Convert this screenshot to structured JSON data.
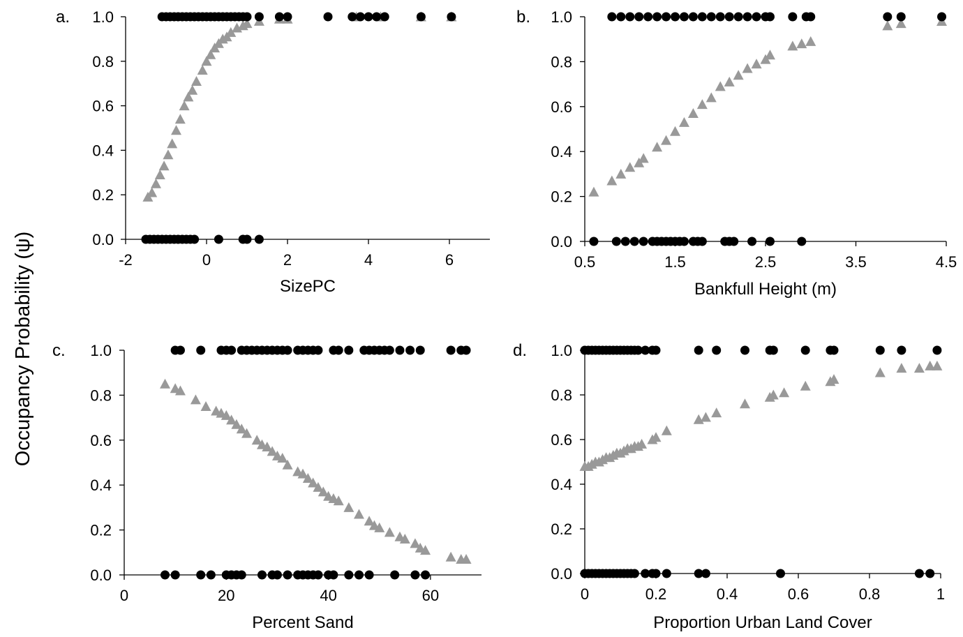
{
  "ylabel": "Occupancy Probability (ψ)",
  "colors": {
    "observed": "#000000",
    "predicted": "#999999"
  },
  "chart_data": [
    {
      "type": "scatter",
      "panel_label": "a.",
      "xlabel": "SizePC",
      "xlim": [
        -2,
        7
      ],
      "ylim": [
        0,
        1
      ],
      "xticks": [
        -2,
        0,
        2,
        4,
        6
      ],
      "xtick_labels": [
        "-2",
        "0",
        "2",
        "4",
        "6"
      ],
      "yticks": [
        0,
        0.2,
        0.4,
        0.6,
        0.8,
        1.0
      ],
      "ytick_labels": [
        "0.0",
        "0.2",
        "0.4",
        "0.6",
        "0.8",
        "1.0"
      ],
      "grid": false,
      "series": [
        {
          "marker": "circle",
          "color": "#000000",
          "x": [
            -1.5,
            -1.4,
            -1.3,
            -1.2,
            -1.1,
            -1.0,
            -0.9,
            -0.8,
            -0.7,
            -0.6,
            -0.5,
            -0.4,
            -0.3,
            0.3,
            0.9,
            1.0,
            1.3,
            -1.1,
            -1.0,
            -0.9,
            -0.8,
            -0.7,
            -0.6,
            -0.5,
            -0.4,
            -0.3,
            -0.2,
            -0.1,
            0.0,
            0.1,
            0.2,
            0.3,
            0.4,
            0.5,
            0.6,
            0.7,
            0.8,
            0.9,
            1.0,
            1.3,
            1.8,
            2.0,
            3.0,
            3.6,
            3.8,
            4.0,
            4.2,
            4.4,
            5.3,
            6.05
          ],
          "y": [
            0,
            0,
            0,
            0,
            0,
            0,
            0,
            0,
            0,
            0,
            0,
            0,
            0,
            0,
            0,
            0,
            0,
            1,
            1,
            1,
            1,
            1,
            1,
            1,
            1,
            1,
            1,
            1,
            1,
            1,
            1,
            1,
            1,
            1,
            1,
            1,
            1,
            1,
            1,
            1,
            1,
            1,
            1,
            1,
            1,
            1,
            1,
            1,
            1,
            1
          ]
        },
        {
          "marker": "triangle",
          "color": "#999999",
          "x": [
            -1.45,
            -1.35,
            -1.25,
            -1.15,
            -1.05,
            -0.95,
            -0.85,
            -0.75,
            -0.65,
            -0.55,
            -0.45,
            -0.35,
            -0.25,
            -0.1,
            0.0,
            0.1,
            0.2,
            0.3,
            0.4,
            0.5,
            0.6,
            0.75,
            0.9,
            1.0,
            1.3,
            1.8,
            2.0,
            3.7,
            4.3,
            5.3,
            6.05
          ],
          "y": [
            0.19,
            0.21,
            0.25,
            0.29,
            0.33,
            0.38,
            0.43,
            0.49,
            0.54,
            0.6,
            0.64,
            0.67,
            0.71,
            0.76,
            0.8,
            0.83,
            0.86,
            0.88,
            0.9,
            0.91,
            0.93,
            0.95,
            0.96,
            0.97,
            0.98,
            0.99,
            0.99,
            1.0,
            1.0,
            1.0,
            1.0
          ]
        }
      ]
    },
    {
      "type": "scatter",
      "panel_label": "b.",
      "xlabel": "Bankfull Height (m)",
      "xlim": [
        0.5,
        4.5
      ],
      "ylim": [
        0,
        1
      ],
      "xticks": [
        0.5,
        1.5,
        2.5,
        3.5,
        4.5
      ],
      "xtick_labels": [
        "0.5",
        "1.5",
        "2.5",
        "3.5",
        "4.5"
      ],
      "yticks": [
        0,
        0.2,
        0.4,
        0.6,
        0.8,
        1.0
      ],
      "ytick_labels": [
        "0.0",
        "0.2",
        "0.4",
        "0.6",
        "0.8",
        "1.0"
      ],
      "grid": false,
      "series": [
        {
          "marker": "circle",
          "color": "#000000",
          "x": [
            0.6,
            0.85,
            0.95,
            1.05,
            1.15,
            1.25,
            1.3,
            1.35,
            1.4,
            1.45,
            1.5,
            1.55,
            1.6,
            1.7,
            1.75,
            1.8,
            2.05,
            2.1,
            2.15,
            2.35,
            2.55,
            2.9,
            0.8,
            0.9,
            1.0,
            1.1,
            1.2,
            1.3,
            1.4,
            1.5,
            1.6,
            1.7,
            1.8,
            1.9,
            2.0,
            2.1,
            2.2,
            2.3,
            2.4,
            2.5,
            2.55,
            2.8,
            2.95,
            3.0,
            3.85,
            4.0,
            4.45
          ],
          "y": [
            0,
            0,
            0,
            0,
            0,
            0,
            0,
            0,
            0,
            0,
            0,
            0,
            0,
            0,
            0,
            0,
            0,
            0,
            0,
            0,
            0,
            0,
            1,
            1,
            1,
            1,
            1,
            1,
            1,
            1,
            1,
            1,
            1,
            1,
            1,
            1,
            1,
            1,
            1,
            1,
            1,
            1,
            1,
            1,
            1,
            1,
            1
          ]
        },
        {
          "marker": "triangle",
          "color": "#999999",
          "x": [
            0.6,
            0.8,
            0.9,
            1.0,
            1.1,
            1.15,
            1.3,
            1.4,
            1.5,
            1.6,
            1.7,
            1.8,
            1.9,
            2.0,
            2.1,
            2.2,
            2.3,
            2.4,
            2.5,
            2.55,
            2.8,
            2.9,
            3.0,
            3.85,
            4.0,
            4.45
          ],
          "y": [
            0.22,
            0.27,
            0.3,
            0.33,
            0.35,
            0.37,
            0.42,
            0.45,
            0.49,
            0.53,
            0.57,
            0.61,
            0.64,
            0.69,
            0.71,
            0.74,
            0.77,
            0.79,
            0.81,
            0.83,
            0.87,
            0.88,
            0.89,
            0.96,
            0.97,
            0.98
          ]
        }
      ]
    },
    {
      "type": "scatter",
      "panel_label": "c.",
      "xlabel": "Percent Sand",
      "xlim": [
        0,
        70
      ],
      "ylim": [
        0,
        1
      ],
      "xticks": [
        0,
        20,
        40,
        60
      ],
      "xtick_labels": [
        "0",
        "20",
        "40",
        "60"
      ],
      "yticks": [
        0,
        0.2,
        0.4,
        0.6,
        0.8,
        1.0
      ],
      "ytick_labels": [
        "0.0",
        "0.2",
        "0.4",
        "0.6",
        "0.8",
        "1.0"
      ],
      "grid": false,
      "series": [
        {
          "marker": "circle",
          "color": "#000000",
          "x": [
            8,
            10,
            15,
            17,
            20,
            21,
            22,
            23,
            27,
            29,
            30,
            32,
            34,
            35,
            36,
            37,
            38,
            40,
            41,
            44,
            46,
            48,
            53,
            57,
            59,
            10,
            11,
            15,
            19,
            20,
            21,
            23,
            24,
            25,
            26,
            27,
            28,
            29,
            30,
            31,
            32,
            34,
            35,
            36,
            37,
            38,
            41,
            42,
            44,
            47,
            48,
            49,
            50,
            51,
            52,
            54,
            56,
            58,
            64,
            66,
            67
          ],
          "y": [
            0,
            0,
            0,
            0,
            0,
            0,
            0,
            0,
            0,
            0,
            0,
            0,
            0,
            0,
            0,
            0,
            0,
            0,
            0,
            0,
            0,
            0,
            0,
            0,
            0,
            1,
            1,
            1,
            1,
            1,
            1,
            1,
            1,
            1,
            1,
            1,
            1,
            1,
            1,
            1,
            1,
            1,
            1,
            1,
            1,
            1,
            1,
            1,
            1,
            1,
            1,
            1,
            1,
            1,
            1,
            1,
            1,
            1,
            1,
            1,
            1
          ]
        },
        {
          "marker": "triangle",
          "color": "#999999",
          "x": [
            8,
            10,
            11,
            14,
            16,
            18,
            19,
            20,
            21,
            22,
            23,
            24,
            26,
            27,
            28,
            29,
            30,
            31,
            32,
            34,
            35,
            36,
            37,
            38,
            39,
            40,
            41,
            42,
            44,
            46,
            48,
            49,
            50,
            52,
            54,
            55,
            57,
            58,
            59,
            64,
            66,
            67
          ],
          "y": [
            0.85,
            0.83,
            0.82,
            0.78,
            0.75,
            0.73,
            0.72,
            0.71,
            0.69,
            0.67,
            0.65,
            0.63,
            0.6,
            0.58,
            0.57,
            0.55,
            0.53,
            0.52,
            0.49,
            0.46,
            0.45,
            0.43,
            0.41,
            0.39,
            0.37,
            0.35,
            0.34,
            0.33,
            0.3,
            0.27,
            0.24,
            0.22,
            0.21,
            0.19,
            0.17,
            0.16,
            0.14,
            0.12,
            0.11,
            0.08,
            0.07,
            0.07
          ]
        }
      ]
    },
    {
      "type": "scatter",
      "panel_label": "d.",
      "xlabel": "Proportion Urban Land Cover",
      "xlim": [
        0,
        1
      ],
      "ylim": [
        0,
        1
      ],
      "xticks": [
        0,
        0.2,
        0.4,
        0.6,
        0.8,
        1
      ],
      "xtick_labels": [
        "0",
        "0.2",
        "0.4",
        "0.6",
        "0.8",
        "1"
      ],
      "yticks": [
        0,
        0.2,
        0.4,
        0.6,
        0.8,
        1.0
      ],
      "ytick_labels": [
        "0.0",
        "0.2",
        "0.4",
        "0.6",
        "0.8",
        "1.0"
      ],
      "grid": false,
      "series": [
        {
          "marker": "circle",
          "color": "#000000",
          "x": [
            0.0,
            0.01,
            0.02,
            0.03,
            0.04,
            0.05,
            0.06,
            0.07,
            0.08,
            0.09,
            0.1,
            0.11,
            0.12,
            0.13,
            0.14,
            0.17,
            0.19,
            0.2,
            0.23,
            0.32,
            0.34,
            0.55,
            0.94,
            0.97,
            0.0,
            0.01,
            0.02,
            0.03,
            0.04,
            0.05,
            0.06,
            0.07,
            0.08,
            0.09,
            0.1,
            0.11,
            0.12,
            0.13,
            0.14,
            0.15,
            0.17,
            0.19,
            0.2,
            0.32,
            0.37,
            0.45,
            0.52,
            0.53,
            0.62,
            0.69,
            0.7,
            0.83,
            0.89,
            0.99
          ],
          "y": [
            0,
            0,
            0,
            0,
            0,
            0,
            0,
            0,
            0,
            0,
            0,
            0,
            0,
            0,
            0,
            0,
            0,
            0,
            0,
            0,
            0,
            0,
            0,
            0,
            1,
            1,
            1,
            1,
            1,
            1,
            1,
            1,
            1,
            1,
            1,
            1,
            1,
            1,
            1,
            1,
            1,
            1,
            1,
            1,
            1,
            1,
            1,
            1,
            1,
            1,
            1,
            1,
            1,
            1
          ]
        },
        {
          "marker": "triangle",
          "color": "#999999",
          "x": [
            0.0,
            0.01,
            0.02,
            0.03,
            0.04,
            0.05,
            0.06,
            0.07,
            0.08,
            0.09,
            0.1,
            0.11,
            0.12,
            0.13,
            0.14,
            0.15,
            0.16,
            0.19,
            0.2,
            0.23,
            0.32,
            0.34,
            0.37,
            0.45,
            0.52,
            0.53,
            0.56,
            0.62,
            0.69,
            0.7,
            0.83,
            0.89,
            0.94,
            0.97,
            0.99
          ],
          "y": [
            0.48,
            0.48,
            0.49,
            0.5,
            0.5,
            0.51,
            0.52,
            0.52,
            0.53,
            0.54,
            0.54,
            0.55,
            0.56,
            0.56,
            0.57,
            0.57,
            0.58,
            0.6,
            0.61,
            0.64,
            0.69,
            0.7,
            0.72,
            0.76,
            0.79,
            0.8,
            0.81,
            0.84,
            0.86,
            0.87,
            0.9,
            0.92,
            0.92,
            0.93,
            0.93
          ]
        }
      ]
    }
  ]
}
